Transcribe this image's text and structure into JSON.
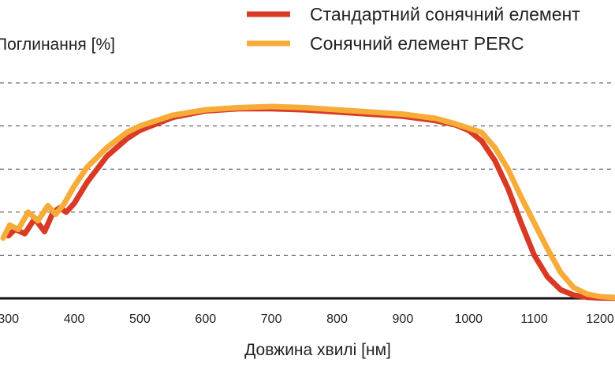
{
  "chart_data": {
    "type": "line",
    "ylabel": "Поглинання [%]",
    "xlabel": "Довжина хвилі [нм]",
    "xlim": [
      280,
      1230
    ],
    "ylim": [
      0,
      100
    ],
    "x_ticks": [
      "300",
      "400",
      "500",
      "600",
      "700",
      "800",
      "900",
      "1000",
      "1100",
      "1200"
    ],
    "y_grid_values": [
      20,
      40,
      60,
      80,
      100
    ],
    "grid": "horizontal-dashed",
    "legend_position": "top-right",
    "series": [
      {
        "name": "Стандартний сонячний елемент",
        "color": "#d93a25",
        "x": [
          300,
          310,
          325,
          340,
          355,
          368,
          378,
          388,
          400,
          420,
          450,
          480,
          500,
          550,
          600,
          650,
          700,
          750,
          800,
          850,
          900,
          950,
          980,
          1000,
          1020,
          1040,
          1060,
          1080,
          1100,
          1120,
          1140,
          1160,
          1180,
          1200,
          1230
        ],
        "y": [
          29,
          32,
          30,
          37,
          31,
          40,
          42,
          40,
          44,
          54,
          66,
          74,
          78,
          84,
          87,
          88,
          88,
          87.5,
          86.5,
          85.5,
          84.5,
          82.5,
          80.5,
          78,
          73,
          64,
          51,
          35,
          20,
          10,
          4,
          1.5,
          0.5,
          0.2,
          0.1
        ]
      },
      {
        "name": "Сонячний елемент PERC",
        "color": "#f7ab38",
        "x": [
          292,
          302,
          315,
          330,
          345,
          360,
          372,
          385,
          400,
          420,
          450,
          480,
          500,
          550,
          600,
          650,
          700,
          750,
          800,
          850,
          900,
          950,
          980,
          1000,
          1020,
          1040,
          1060,
          1080,
          1100,
          1120,
          1140,
          1160,
          1180,
          1200,
          1230
        ],
        "y": [
          28,
          34,
          32,
          40,
          36,
          43,
          39,
          44,
          52,
          61,
          70,
          77,
          80,
          85,
          87.5,
          88.5,
          89,
          88.5,
          87.5,
          86.5,
          85.5,
          83.5,
          81,
          79,
          77,
          70,
          60,
          47,
          35,
          23,
          12,
          5,
          2,
          0.8,
          0.3
        ]
      }
    ]
  }
}
